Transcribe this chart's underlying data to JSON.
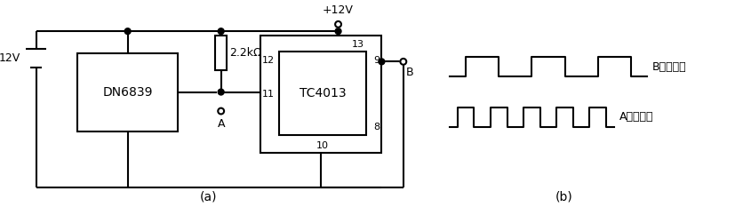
{
  "bg_color": "#ffffff",
  "line_color": "#000000",
  "lw": 1.5,
  "battery_label": "12V",
  "dn_label": "DN6839",
  "tc_label": "TC4013",
  "resistor_label": "2.2kΩ",
  "vcc_label": "+12V",
  "label_A": "A",
  "label_B": "B",
  "pin12": "12",
  "pin13": "13",
  "pin9": "9",
  "pin8": "8",
  "pin11": "11",
  "pin10": "10",
  "caption_a": "(a)",
  "caption_b": "(b)",
  "b_wave_label": "B输出波形",
  "a_wave_label": "A输出波形"
}
